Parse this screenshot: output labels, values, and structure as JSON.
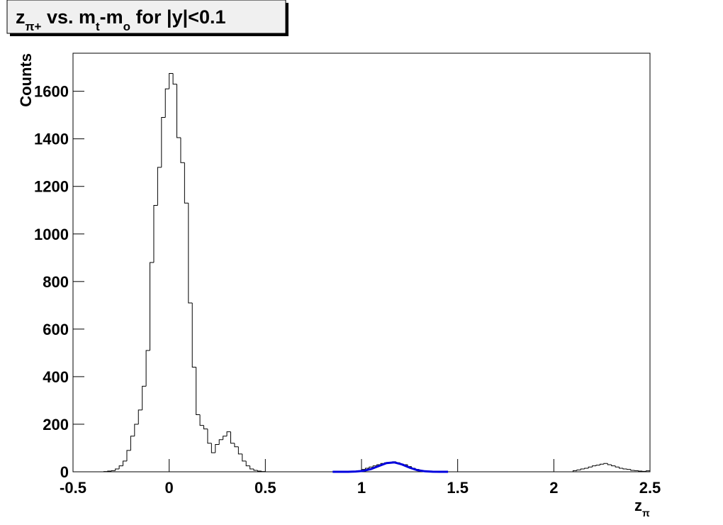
{
  "chart_data": {
    "type": "histogram",
    "title_parts": [
      "z",
      "π+",
      " vs. m",
      "t",
      "-m",
      "o",
      " for |y|<0.1"
    ],
    "x_label_parts": [
      "z",
      "π"
    ],
    "y_label": "Counts",
    "color": "#000000",
    "bins": [
      -0.5,
      -0.48,
      -0.46,
      -0.44,
      -0.42,
      -0.4,
      -0.38,
      -0.36,
      -0.34,
      -0.32,
      -0.3,
      -0.28,
      -0.26,
      -0.24,
      -0.22,
      -0.2,
      -0.18,
      -0.16,
      -0.14,
      -0.12,
      -0.1,
      -0.08,
      -0.06,
      -0.04,
      -0.02,
      0,
      0.02,
      0.04,
      0.06,
      0.08,
      0.1,
      0.12,
      0.14,
      0.16,
      0.18,
      0.2,
      0.22,
      0.24,
      0.26,
      0.28,
      0.3,
      0.32,
      0.34,
      0.36,
      0.38,
      0.4,
      0.42,
      0.44,
      0.46,
      0.48,
      0.5,
      0.52,
      0.54,
      0.56,
      0.58,
      0.6,
      0.62,
      0.64,
      0.66,
      0.68,
      0.7,
      0.72,
      0.74,
      0.76,
      0.78,
      0.8,
      0.82,
      0.84,
      0.86,
      0.88,
      0.9,
      0.92,
      0.94,
      0.96,
      0.98,
      1,
      1.02,
      1.04,
      1.06,
      1.08,
      1.1,
      1.12,
      1.14,
      1.16,
      1.18,
      1.2,
      1.22,
      1.24,
      1.26,
      1.28,
      1.3,
      1.32,
      1.34,
      1.36,
      1.38,
      1.4,
      1.42,
      1.44,
      1.46,
      1.48,
      1.5,
      1.52,
      1.54,
      1.56,
      1.58,
      1.6,
      1.62,
      1.64,
      1.66,
      1.68,
      1.7,
      1.72,
      1.74,
      1.76,
      1.78,
      1.8,
      1.82,
      1.84,
      1.86,
      1.88,
      1.9,
      1.92,
      1.94,
      1.96,
      1.98,
      2,
      2.02,
      2.04,
      2.06,
      2.08,
      2.1,
      2.12,
      2.14,
      2.16,
      2.18,
      2.2,
      2.22,
      2.24,
      2.26,
      2.28,
      2.3,
      2.32,
      2.34,
      2.36,
      2.38,
      2.4,
      2.42,
      2.44,
      2.46,
      2.48,
      2.5
    ],
    "counts": [
      0,
      0,
      0,
      0,
      0,
      0,
      0,
      0,
      1,
      3,
      5,
      12,
      25,
      45,
      90,
      150,
      200,
      260,
      360,
      510,
      880,
      1120,
      1280,
      1490,
      1610,
      1675,
      1630,
      1405,
      1300,
      1130,
      710,
      440,
      240,
      195,
      180,
      120,
      80,
      115,
      135,
      150,
      168,
      120,
      105,
      75,
      45,
      25,
      12,
      6,
      3,
      1,
      0,
      0,
      0,
      0,
      0,
      0,
      0,
      0,
      0,
      0,
      0,
      0,
      0,
      0,
      0,
      0,
      0,
      0,
      0,
      0,
      0,
      0,
      0,
      0,
      0,
      10,
      15,
      20,
      25,
      30,
      35,
      38,
      40,
      42,
      38,
      32,
      30,
      22,
      15,
      10,
      5,
      2,
      0,
      0,
      0,
      0,
      0,
      0,
      0,
      0,
      0,
      0,
      0,
      0,
      0,
      0,
      0,
      0,
      0,
      0,
      0,
      0,
      0,
      0,
      0,
      0,
      0,
      0,
      0,
      0,
      0,
      0,
      0,
      0,
      0,
      0,
      0,
      0,
      0,
      0,
      5,
      8,
      12,
      15,
      20,
      25,
      28,
      32,
      35,
      30,
      25,
      20,
      15,
      12,
      10,
      6,
      5,
      3,
      2,
      4
    ],
    "fit": {
      "type": "line",
      "color": "#0000dd",
      "x": [
        0.85,
        0.89,
        0.93,
        0.97,
        1.01,
        1.05,
        1.09,
        1.13,
        1.17,
        1.21,
        1.25,
        1.29,
        1.33,
        1.37,
        1.41,
        1.45
      ],
      "values": [
        0,
        0.02,
        0.18,
        1,
        4,
        11.6,
        24.3,
        36.5,
        39.6,
        31,
        17.5,
        7.1,
        2.1,
        0.4,
        0.07,
        0
      ]
    },
    "xlim": [
      -0.5,
      2.5
    ],
    "ylim": [
      0,
      1760
    ],
    "xticks": [
      -0.5,
      0,
      0.5,
      1,
      1.5,
      2,
      2.5
    ],
    "yticks": [
      0,
      200,
      400,
      600,
      800,
      1000,
      1200,
      1400,
      1600
    ]
  }
}
